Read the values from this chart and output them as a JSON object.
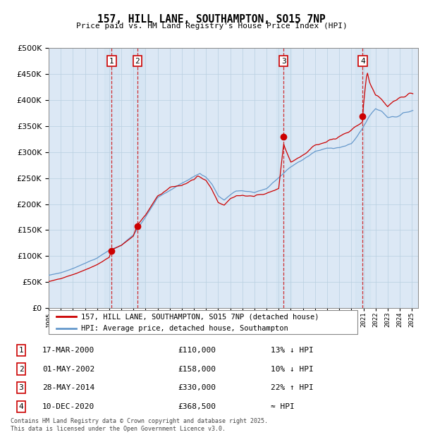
{
  "title": "157, HILL LANE, SOUTHAMPTON, SO15 7NP",
  "subtitle": "Price paid vs. HM Land Registry's House Price Index (HPI)",
  "legend_line1": "157, HILL LANE, SOUTHAMPTON, SO15 7NP (detached house)",
  "legend_line2": "HPI: Average price, detached house, Southampton",
  "ytick_values": [
    0,
    50000,
    100000,
    150000,
    200000,
    250000,
    300000,
    350000,
    400000,
    450000,
    500000
  ],
  "xmin": 1995.0,
  "xmax": 2025.5,
  "ymin": 0,
  "ymax": 500000,
  "background_color": "#f0f4f8",
  "plot_bg_color": "#dce8f5",
  "grid_color": "#b8cfe0",
  "sale_color": "#cc0000",
  "hpi_color": "#6699cc",
  "sale_label_border": "#cc0000",
  "sales": [
    {
      "num": 1,
      "year": 2000.21,
      "price": 110000,
      "date": "17-MAR-2000",
      "pct": "13%",
      "dir": "↓"
    },
    {
      "num": 2,
      "year": 2002.33,
      "price": 158000,
      "date": "01-MAY-2002",
      "pct": "10%",
      "dir": "↓"
    },
    {
      "num": 3,
      "year": 2014.41,
      "price": 330000,
      "date": "28-MAY-2014",
      "pct": "22%",
      "dir": "↑"
    },
    {
      "num": 4,
      "year": 2020.94,
      "price": 368500,
      "date": "10-DEC-2020",
      "pct": "≈",
      "dir": ""
    }
  ],
  "footnote": "Contains HM Land Registry data © Crown copyright and database right 2025.\nThis data is licensed under the Open Government Licence v3.0."
}
